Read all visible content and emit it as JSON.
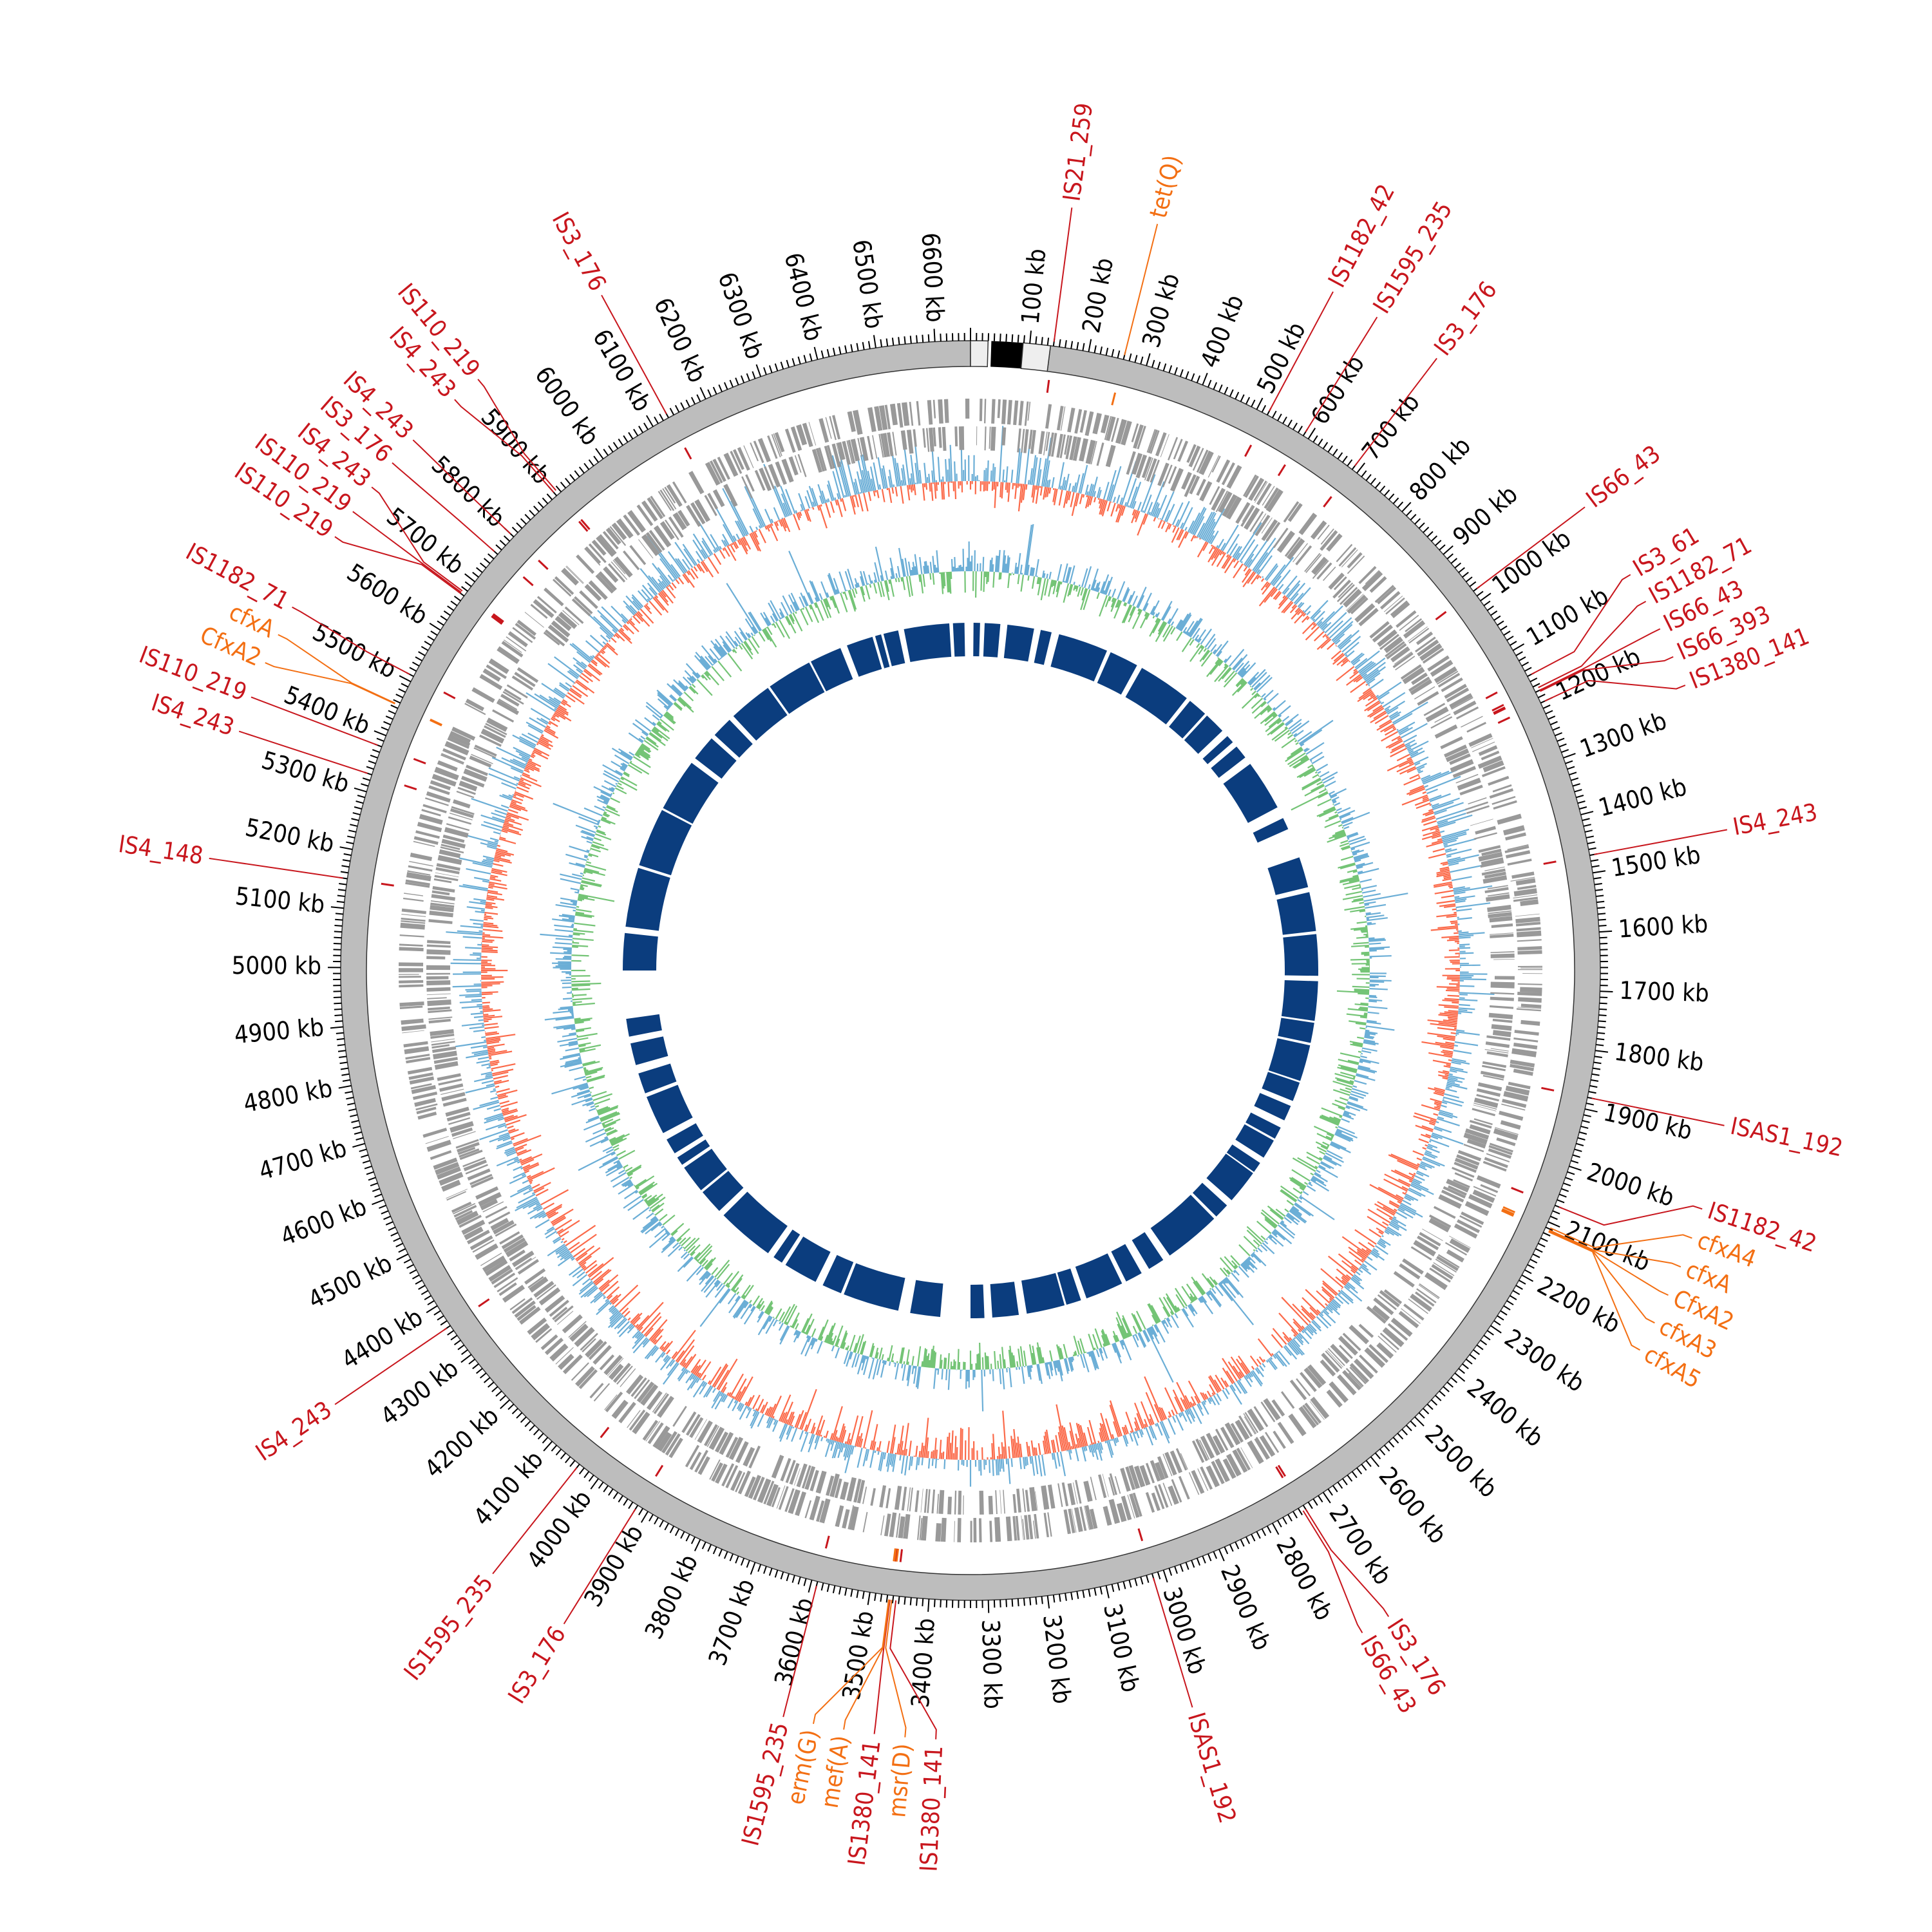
{
  "genome": {
    "length_kb": 6660,
    "major_tick_kb": 100,
    "minor_tick_kb": 10,
    "tick_labels": [
      "100 kb",
      "200 kb",
      "300 kb",
      "400 kb",
      "500 kb",
      "600 kb",
      "700 kb",
      "800 kb",
      "900 kb",
      "1000 kb",
      "1100 kb",
      "1200 kb",
      "1300 kb",
      "1400 kb",
      "1500 kb",
      "1600 kb",
      "1700 kb",
      "1800 kb",
      "1900 kb",
      "2000 kb",
      "2100 kb",
      "2200 kb",
      "2300 kb",
      "2400 kb",
      "2500 kb",
      "2600 kb",
      "2700 kb",
      "2800 kb",
      "2900 kb",
      "3000 kb",
      "3100 kb",
      "3200 kb",
      "3300 kb",
      "3400 kb",
      "3500 kb",
      "3600 kb",
      "3700 kb",
      "3800 kb",
      "3900 kb",
      "4000 kb",
      "4100 kb",
      "4200 kb",
      "4300 kb",
      "4400 kb",
      "4500 kb",
      "4600 kb",
      "4700 kb",
      "4800 kb",
      "4900 kb",
      "5000 kb",
      "5100 kb",
      "5200 kb",
      "5300 kb",
      "5400 kb",
      "5500 kb",
      "5600 kb",
      "5700 kb",
      "5800 kb",
      "5900 kb",
      "6000 kb",
      "6100 kb",
      "6200 kb",
      "6300 kb",
      "6400 kb",
      "6500 kb",
      "6600 kb"
    ]
  },
  "colors": {
    "insertion_sequence": "#c8161d",
    "resistance_gene": "#f36f13",
    "backbone": "#bdbdbd",
    "genes": "#999999",
    "gc_skew_pos": "#6baed6",
    "gc_skew_neg": "#fb6a4a",
    "gc_content_pos": "#6baed6",
    "gc_content_neg": "#74c476",
    "blocks": "#0b3d7e"
  },
  "features": [
    {
      "label": "IS21_259",
      "kb": 140,
      "type": "IS"
    },
    {
      "label": "tet(Q)",
      "kb": 260,
      "type": "ARG"
    },
    {
      "label": "IS1182_42",
      "kb": 520,
      "type": "IS"
    },
    {
      "label": "IS1595_235",
      "kb": 590,
      "type": "IS"
    },
    {
      "label": "IS3_176",
      "kb": 690,
      "type": "IS"
    },
    {
      "label": "IS66_43",
      "kb": 980,
      "type": "IS"
    },
    {
      "label": "IS3_61",
      "kb": 1150,
      "type": "IS"
    },
    {
      "label": "IS1182_71",
      "kb": 1175,
      "type": "IS"
    },
    {
      "label": "IS66_43",
      "kb": 1180,
      "type": "IS"
    },
    {
      "label": "IS66_393",
      "kb": 1182,
      "type": "IS"
    },
    {
      "label": "IS1380_141",
      "kb": 1200,
      "type": "IS"
    },
    {
      "label": "IS4_243",
      "kb": 1470,
      "type": "IS"
    },
    {
      "label": "ISAS1_192",
      "kb": 1880,
      "type": "IS"
    },
    {
      "label": "cfxA4",
      "kb": 2108,
      "type": "ARG"
    },
    {
      "label": "IS1182_42",
      "kb": 2070,
      "type": "IS"
    },
    {
      "label": "cfxA",
      "kb": 2112,
      "type": "ARG"
    },
    {
      "label": "CfxA2",
      "kb": 2113,
      "type": "ARG"
    },
    {
      "label": "cfxA3",
      "kb": 2114,
      "type": "ARG"
    },
    {
      "label": "cfxA5",
      "kb": 2115,
      "type": "ARG"
    },
    {
      "label": "IS3_176",
      "kb": 2740,
      "type": "IS"
    },
    {
      "label": "IS66_43",
      "kb": 2745,
      "type": "IS"
    },
    {
      "label": "ISAS1_192",
      "kb": 3020,
      "type": "IS"
    },
    {
      "label": "IS1380_141",
      "kb": 3455,
      "type": "IS"
    },
    {
      "label": "msr(D)",
      "kb": 3462,
      "type": "ARG"
    },
    {
      "label": "IS1380_141",
      "kb": 3465,
      "type": "IS"
    },
    {
      "label": "mef(A)",
      "kb": 3466,
      "type": "ARG"
    },
    {
      "label": "erm(G)",
      "kb": 3467,
      "type": "ARG"
    },
    {
      "label": "IS1595_235",
      "kb": 3590,
      "type": "IS"
    },
    {
      "label": "IS3_176",
      "kb": 3920,
      "type": "IS"
    },
    {
      "label": "IS1595_235",
      "kb": 4040,
      "type": "IS"
    },
    {
      "label": "IS4_243",
      "kb": 4360,
      "type": "IS"
    },
    {
      "label": "IS4_148",
      "kb": 5150,
      "type": "IS"
    },
    {
      "label": "IS4_243",
      "kb": 5330,
      "type": "IS"
    },
    {
      "label": "IS110_219",
      "kb": 5380,
      "type": "IS"
    },
    {
      "label": "CfxA2",
      "kb": 5455,
      "type": "ARG"
    },
    {
      "label": "cfxA",
      "kb": 5456,
      "type": "ARG"
    },
    {
      "label": "IS1182_71",
      "kb": 5510,
      "type": "IS"
    },
    {
      "label": "IS110_219",
      "kb": 5670,
      "type": "IS"
    },
    {
      "label": "IS110_219",
      "kb": 5672,
      "type": "IS"
    },
    {
      "label": "IS4_243",
      "kb": 5675,
      "type": "IS"
    },
    {
      "label": "IS3_176",
      "kb": 5760,
      "type": "IS"
    },
    {
      "label": "IS4_243",
      "kb": 5800,
      "type": "IS"
    },
    {
      "label": "IS4_243",
      "kb": 5900,
      "type": "IS"
    },
    {
      "label": "IS110_219",
      "kb": 5905,
      "type": "IS"
    },
    {
      "label": "IS3_176",
      "kb": 6130,
      "type": "IS"
    }
  ]
}
